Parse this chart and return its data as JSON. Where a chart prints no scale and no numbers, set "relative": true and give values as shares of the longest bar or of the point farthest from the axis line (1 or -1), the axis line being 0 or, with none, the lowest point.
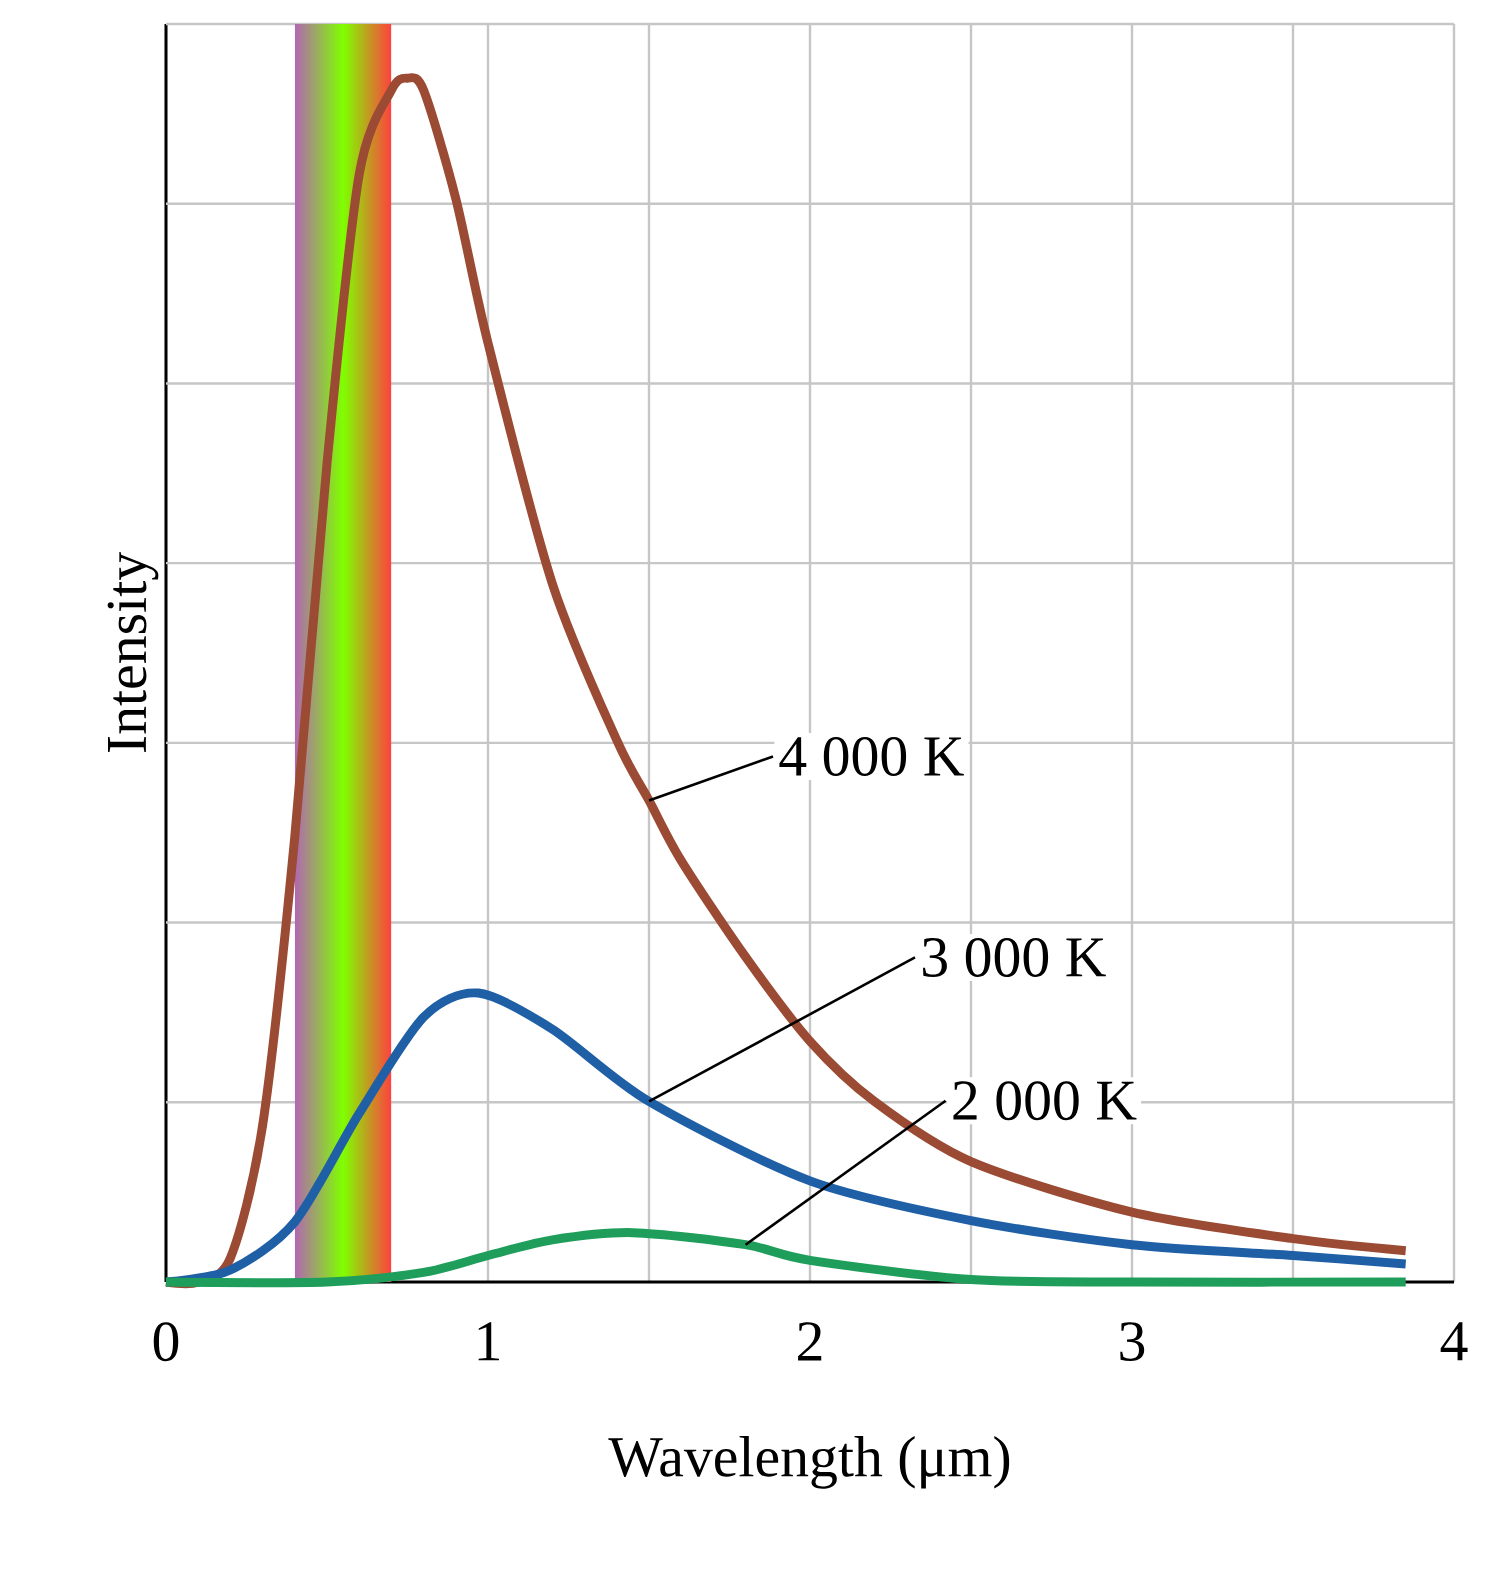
{
  "chart_data": {
    "type": "line",
    "relative": true,
    "xlabel": "Wavelength (μm)",
    "ylabel": "Intensity",
    "xlim": [
      0,
      4
    ],
    "xticks": [
      0,
      1,
      2,
      3,
      4
    ],
    "grid": true,
    "legend": false,
    "marker": "none",
    "line_style": "solid",
    "bands": [
      {
        "axis": "x",
        "from": 0.4,
        "to": 0.7
      }
    ],
    "series": [
      {
        "name": "4 000 K",
        "color": "#9b4a33",
        "x": [
          0,
          0.1,
          0.2,
          0.3,
          0.4,
          0.5,
          0.6,
          0.7,
          0.75,
          0.8,
          0.9,
          1.0,
          1.2,
          1.4,
          1.5,
          1.6,
          1.8,
          2.0,
          2.2,
          2.5,
          3.0,
          3.5,
          3.85
        ],
        "values": [
          0,
          0,
          0.02,
          0.13,
          0.37,
          0.68,
          0.92,
          0.99,
          1,
          0.99,
          0.9,
          0.78,
          0.58,
          0.45,
          0.4,
          0.35,
          0.27,
          0.2,
          0.15,
          0.1,
          0.058,
          0.036,
          0.026
        ]
      },
      {
        "name": "3 000 K",
        "color": "#1f5fa6",
        "x": [
          0,
          0.2,
          0.4,
          0.6,
          0.8,
          0.97,
          1.2,
          1.5,
          2.0,
          2.5,
          3.0,
          3.5,
          3.85
        ],
        "values": [
          0,
          0.01,
          0.05,
          0.14,
          0.22,
          0.24,
          0.21,
          0.15,
          0.084,
          0.051,
          0.031,
          0.022,
          0.015
        ]
      },
      {
        "name": "2 000 K",
        "color": "#1e9e5a",
        "x": [
          0,
          0.5,
          0.8,
          1.0,
          1.2,
          1.45,
          1.8,
          2.0,
          2.5,
          3.0,
          3.85
        ],
        "values": [
          0,
          0,
          0.008,
          0.022,
          0.035,
          0.041,
          0.031,
          0.018,
          0.002,
          0,
          0
        ]
      }
    ]
  }
}
